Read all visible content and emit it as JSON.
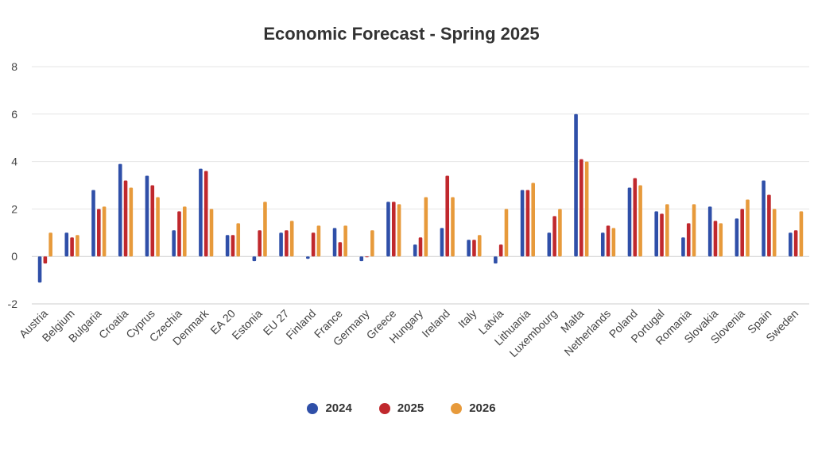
{
  "chart_data": {
    "type": "bar",
    "title": "Economic Forecast - Spring 2025",
    "xlabel": "",
    "ylabel": "",
    "ylim": [
      -2,
      8
    ],
    "yticks": [
      -2,
      0,
      2,
      4,
      6,
      8
    ],
    "grid": true,
    "legend_position": "bottom-center",
    "categories": [
      "Austria",
      "Belgium",
      "Bulgaria",
      "Croatia",
      "Cyprus",
      "Czechia",
      "Denmark",
      "EA 20",
      "Estonia",
      "EU 27",
      "Finland",
      "France",
      "Germany",
      "Greece",
      "Hungary",
      "Ireland",
      "Italy",
      "Latvia",
      "Lithuania",
      "Luxembourg",
      "Malta",
      "Netherlands",
      "Poland",
      "Portugal",
      "Romania",
      "Slovakia",
      "Slovenia",
      "Spain",
      "Sweden"
    ],
    "series": [
      {
        "name": "2024",
        "color": "#2f4fa8",
        "values": [
          -1.1,
          1.0,
          2.8,
          3.9,
          3.4,
          1.1,
          3.7,
          0.9,
          -0.2,
          1.0,
          -0.1,
          1.2,
          -0.2,
          2.3,
          0.5,
          1.2,
          0.7,
          -0.3,
          2.8,
          1.0,
          6.0,
          1.0,
          2.9,
          1.9,
          0.8,
          2.1,
          1.6,
          3.2,
          1.0
        ]
      },
      {
        "name": "2025",
        "color": "#c0282d",
        "values": [
          -0.3,
          0.8,
          2.0,
          3.2,
          3.0,
          1.9,
          3.6,
          0.9,
          1.1,
          1.1,
          1.0,
          0.6,
          0.0,
          2.3,
          0.8,
          3.4,
          0.7,
          0.5,
          2.8,
          1.7,
          4.1,
          1.3,
          3.3,
          1.8,
          1.4,
          1.5,
          2.0,
          2.6,
          1.1
        ]
      },
      {
        "name": "2026",
        "color": "#e79a3b",
        "values": [
          1.0,
          0.9,
          2.1,
          2.9,
          2.5,
          2.1,
          2.0,
          1.4,
          2.3,
          1.5,
          1.3,
          1.3,
          1.1,
          2.2,
          2.5,
          2.5,
          0.9,
          2.0,
          3.1,
          2.0,
          4.0,
          1.2,
          3.0,
          2.2,
          2.2,
          1.4,
          2.4,
          2.0,
          1.9
        ]
      }
    ]
  }
}
